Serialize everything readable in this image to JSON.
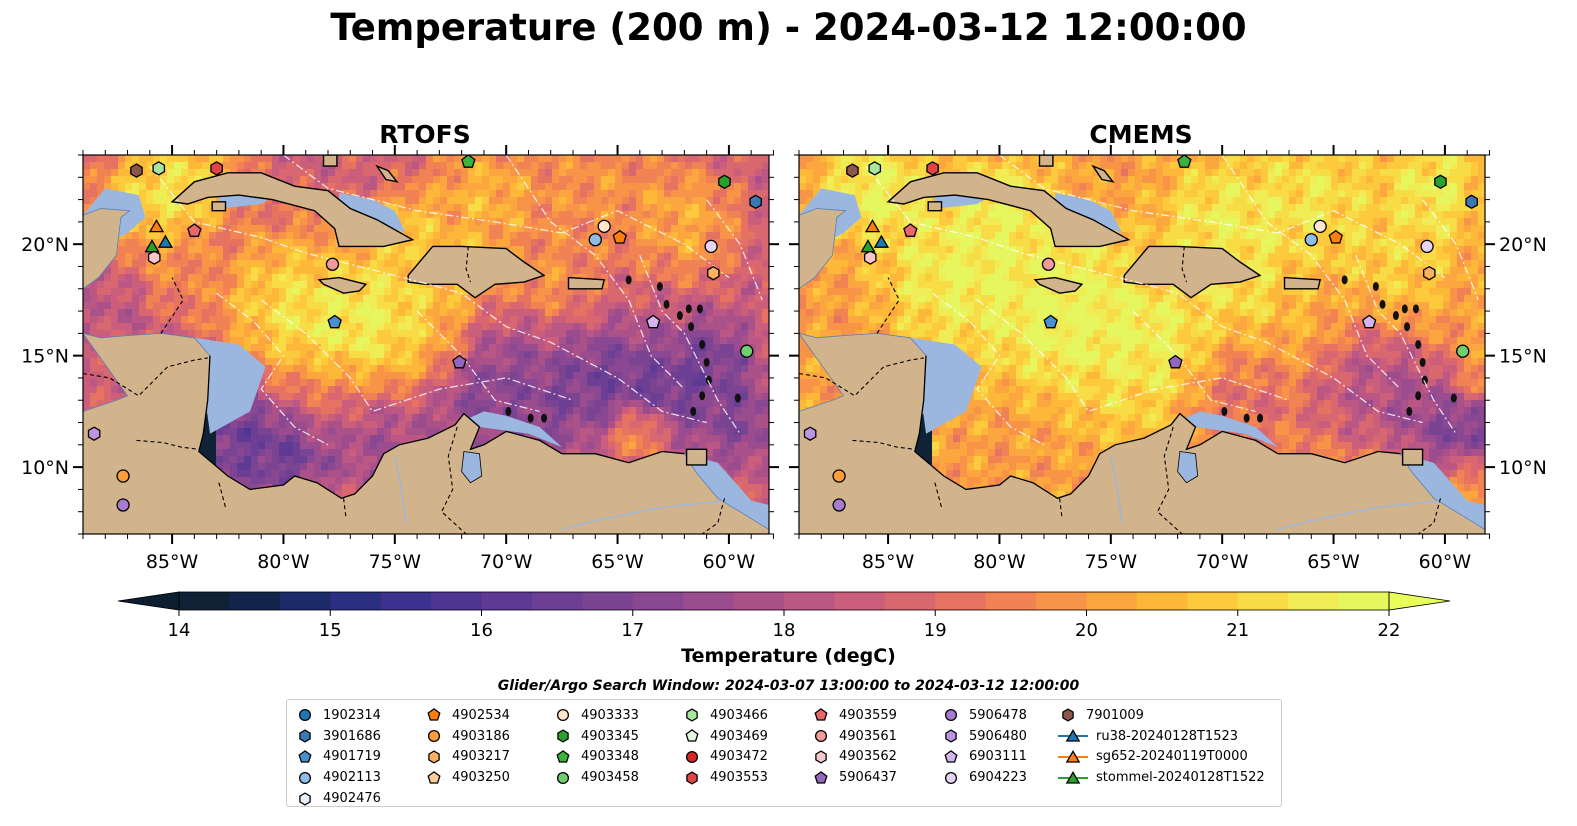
{
  "title": "Temperature (200 m) - 2024-03-12 12:00:00",
  "panels": [
    {
      "title": "RTOFS",
      "id": "rtofs"
    },
    {
      "title": "CMEMS",
      "id": "cmems"
    }
  ],
  "lon_ticks": [
    "85°W",
    "80°W",
    "75°W",
    "70°W",
    "65°W",
    "60°W"
  ],
  "lon_values": [
    -85,
    -80,
    -75,
    -70,
    -65,
    -60
  ],
  "lat_ticks": [
    "20°N",
    "15°N",
    "10°N"
  ],
  "lat_values": [
    20,
    15,
    10
  ],
  "map_extent": {
    "lon": [
      -89,
      -58.2
    ],
    "lat": [
      7,
      24
    ]
  },
  "colorbar": {
    "label": "Temperature (degC)",
    "min": 14,
    "max": 22,
    "ticks": [
      "14",
      "15",
      "16",
      "17",
      "18",
      "19",
      "20",
      "21",
      "22"
    ],
    "extend": "both",
    "colormap": "thermal",
    "colors": [
      "#0f2236",
      "#13254a",
      "#1d2a6a",
      "#2b2f82",
      "#3c318e",
      "#4e3592",
      "#5e3a94",
      "#6d3f94",
      "#7b4493",
      "#8a4892",
      "#9a4c8f",
      "#aa518a",
      "#bb5784",
      "#ca5e7b",
      "#d9676f",
      "#e67362",
      "#f08254",
      "#f79447",
      "#fba63e",
      "#fdb83a",
      "#fcca3c",
      "#f8dc45",
      "#f0ec55",
      "#e6f65f"
    ]
  },
  "legend": {
    "title": "Glider/Argo Search Window: 2024-03-07 13:00:00 to 2024-03-12 12:00:00",
    "items": [
      {
        "label": "1902314",
        "marker": "circle",
        "color": "#1f77b4"
      },
      {
        "label": "3901686",
        "marker": "hexagon",
        "color": "#3a78b5"
      },
      {
        "label": "4901719",
        "marker": "pentagon",
        "color": "#4a90d0"
      },
      {
        "label": "4902113",
        "marker": "circle",
        "color": "#8fbde6"
      },
      {
        "label": "4902476",
        "marker": "hexagon",
        "color": "#e6f1fb"
      },
      {
        "label": "4902534",
        "marker": "pentagon",
        "color": "#ff7f0e"
      },
      {
        "label": "4903186",
        "marker": "circle",
        "color": "#ff9d3b"
      },
      {
        "label": "4903217",
        "marker": "hexagon",
        "color": "#ffb060"
      },
      {
        "label": "4903250",
        "marker": "pentagon",
        "color": "#ffcc99"
      },
      {
        "label": "4903333",
        "marker": "circle",
        "color": "#ffe6cc"
      },
      {
        "label": "4903345",
        "marker": "hexagon",
        "color": "#2ca02c"
      },
      {
        "label": "4903348",
        "marker": "pentagon",
        "color": "#3cb33c"
      },
      {
        "label": "4903458",
        "marker": "circle",
        "color": "#6fcf6f"
      },
      {
        "label": "4903466",
        "marker": "hexagon",
        "color": "#a8e6a0"
      },
      {
        "label": "4903469",
        "marker": "pentagon",
        "color": "#e5f7e0"
      },
      {
        "label": "4903472",
        "marker": "circle",
        "color": "#d62728"
      },
      {
        "label": "4903553",
        "marker": "hexagon",
        "color": "#e04446"
      },
      {
        "label": "4903559",
        "marker": "pentagon",
        "color": "#e8676a"
      },
      {
        "label": "4903561",
        "marker": "circle",
        "color": "#f09a9a"
      },
      {
        "label": "4903562",
        "marker": "hexagon",
        "color": "#f8c8c8"
      },
      {
        "label": "5906437",
        "marker": "pentagon",
        "color": "#9467bd"
      },
      {
        "label": "5906478",
        "marker": "circle",
        "color": "#a57cd0"
      },
      {
        "label": "5906480",
        "marker": "hexagon",
        "color": "#bc95e0"
      },
      {
        "label": "6903111",
        "marker": "pentagon",
        "color": "#d2b5ee"
      },
      {
        "label": "6904223",
        "marker": "circle",
        "color": "#e6d3f8"
      },
      {
        "label": "7901009",
        "marker": "hexagon",
        "color": "#8c564b"
      },
      {
        "label": "ru38-20240128T1523",
        "marker": "line-triangle",
        "color": "#1f77b4"
      },
      {
        "label": "sg652-20240119T0000",
        "marker": "line-triangle",
        "color": "#ff7f0e"
      },
      {
        "label": "stommel-20240128T1522",
        "marker": "line-triangle",
        "color": "#2ca02c"
      }
    ]
  },
  "markers_on_map": [
    {
      "id": "7901009",
      "lon": -86.6,
      "lat": 23.3
    },
    {
      "id": "4903466",
      "lon": -85.6,
      "lat": 23.4
    },
    {
      "id": "4903553",
      "lon": -83.0,
      "lat": 23.4
    },
    {
      "id": "4903348",
      "lon": -71.7,
      "lat": 23.7
    },
    {
      "id": "4903345",
      "lon": -60.2,
      "lat": 22.8
    },
    {
      "id": "3901686",
      "lon": -58.8,
      "lat": 21.9
    },
    {
      "id": "4903559",
      "lon": -84.0,
      "lat": 20.6
    },
    {
      "id": "4903562",
      "lon": -85.8,
      "lat": 19.4
    },
    {
      "id": "4903561",
      "lon": -77.8,
      "lat": 19.1
    },
    {
      "id": "4903333",
      "lon": -65.6,
      "lat": 20.8
    },
    {
      "id": "4902113",
      "lon": -66.0,
      "lat": 20.2
    },
    {
      "id": "4902534",
      "lon": -64.9,
      "lat": 20.3
    },
    {
      "id": "6904223",
      "lon": -60.8,
      "lat": 19.9
    },
    {
      "id": "4903217",
      "lon": -60.7,
      "lat": 18.7
    },
    {
      "id": "4901719",
      "lon": -77.7,
      "lat": 16.5
    },
    {
      "id": "6903111",
      "lon": -63.4,
      "lat": 16.5
    },
    {
      "id": "5906437",
      "lon": -72.1,
      "lat": 14.7
    },
    {
      "id": "4903458",
      "lon": -59.2,
      "lat": 15.2
    },
    {
      "id": "5906480",
      "lon": -88.5,
      "lat": 11.5
    },
    {
      "id": "4903186",
      "lon": -87.2,
      "lat": 9.6
    },
    {
      "id": "5906478",
      "lon": -87.2,
      "lat": 8.3
    },
    {
      "id": "sg652-20240119T0000",
      "lon": -85.7,
      "lat": 20.8
    },
    {
      "id": "stommel-20240128T1522",
      "lon": -85.9,
      "lat": 19.9
    },
    {
      "id": "ru38-20240128T1523",
      "lon": -85.3,
      "lat": 20.1
    }
  ]
}
